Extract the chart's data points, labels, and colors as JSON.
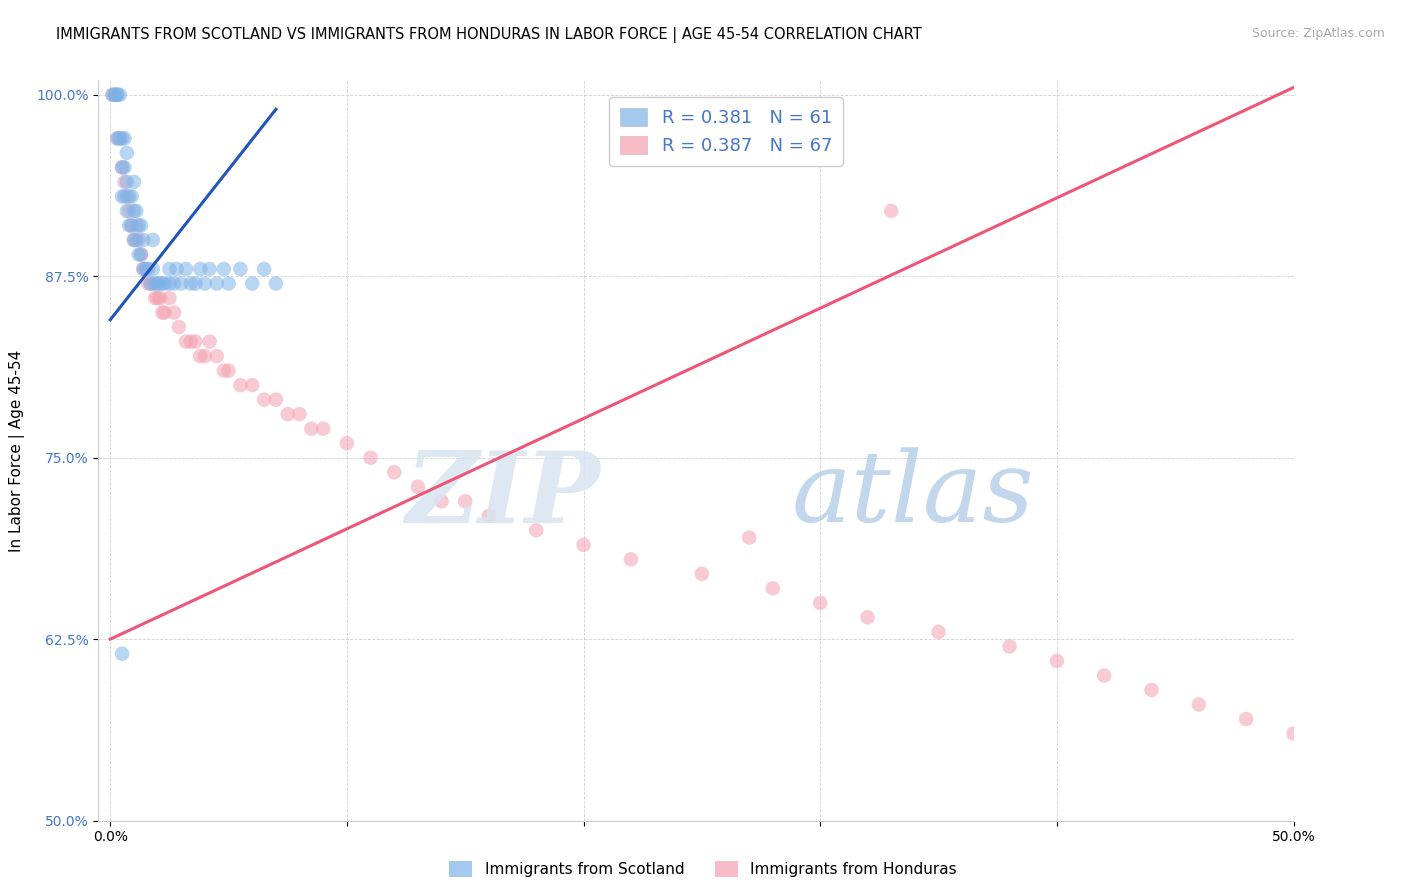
{
  "title": "IMMIGRANTS FROM SCOTLAND VS IMMIGRANTS FROM HONDURAS IN LABOR FORCE | AGE 45-54 CORRELATION CHART",
  "source": "Source: ZipAtlas.com",
  "ylabel": "In Labor Force | Age 45-54",
  "xlabel": "",
  "xlim": [
    -0.005,
    0.5
  ],
  "ylim": [
    0.5,
    1.01
  ],
  "yticks": [
    0.5,
    0.625,
    0.75,
    0.875,
    1.0
  ],
  "ytick_labels": [
    "50.0%",
    "62.5%",
    "75.0%",
    "87.5%",
    "100.0%"
  ],
  "xticks": [
    0.0,
    0.1,
    0.2,
    0.3,
    0.4,
    0.5
  ],
  "xtick_labels": [
    "0.0%",
    "",
    "",
    "",
    "",
    "50.0%"
  ],
  "scotland_R": 0.381,
  "scotland_N": 61,
  "honduras_R": 0.387,
  "honduras_N": 67,
  "scotland_color": "#7EB3E8",
  "honduras_color": "#F4A0B0",
  "scotland_line_color": "#2255BB",
  "honduras_line_color": "#EE5577",
  "axis_label_color": "#4477CC",
  "scotland_x": [
    0.001,
    0.002,
    0.002,
    0.003,
    0.003,
    0.003,
    0.004,
    0.004,
    0.005,
    0.005,
    0.005,
    0.006,
    0.006,
    0.006,
    0.007,
    0.007,
    0.007,
    0.008,
    0.008,
    0.009,
    0.009,
    0.01,
    0.01,
    0.01,
    0.011,
    0.011,
    0.012,
    0.012,
    0.013,
    0.013,
    0.014,
    0.014,
    0.015,
    0.016,
    0.017,
    0.018,
    0.018,
    0.019,
    0.02,
    0.021,
    0.022,
    0.023,
    0.025,
    0.025,
    0.027,
    0.028,
    0.03,
    0.032,
    0.034,
    0.036,
    0.038,
    0.04,
    0.042,
    0.045,
    0.048,
    0.05,
    0.055,
    0.06,
    0.065,
    0.07,
    0.005
  ],
  "scotland_y": [
    1.0,
    1.0,
    1.0,
    1.0,
    1.0,
    0.97,
    1.0,
    0.97,
    0.95,
    0.93,
    0.97,
    0.93,
    0.95,
    0.97,
    0.92,
    0.94,
    0.96,
    0.91,
    0.93,
    0.91,
    0.93,
    0.9,
    0.92,
    0.94,
    0.9,
    0.92,
    0.89,
    0.91,
    0.89,
    0.91,
    0.88,
    0.9,
    0.88,
    0.88,
    0.87,
    0.88,
    0.9,
    0.87,
    0.87,
    0.87,
    0.87,
    0.87,
    0.87,
    0.88,
    0.87,
    0.88,
    0.87,
    0.88,
    0.87,
    0.87,
    0.88,
    0.87,
    0.88,
    0.87,
    0.88,
    0.87,
    0.88,
    0.87,
    0.88,
    0.87,
    0.615
  ],
  "honduras_x": [
    0.001,
    0.002,
    0.003,
    0.004,
    0.005,
    0.006,
    0.007,
    0.008,
    0.009,
    0.01,
    0.011,
    0.012,
    0.013,
    0.014,
    0.015,
    0.016,
    0.017,
    0.018,
    0.019,
    0.02,
    0.021,
    0.022,
    0.023,
    0.025,
    0.027,
    0.029,
    0.032,
    0.034,
    0.036,
    0.038,
    0.04,
    0.042,
    0.045,
    0.048,
    0.05,
    0.055,
    0.06,
    0.065,
    0.07,
    0.075,
    0.08,
    0.085,
    0.09,
    0.1,
    0.11,
    0.12,
    0.13,
    0.14,
    0.15,
    0.16,
    0.18,
    0.2,
    0.22,
    0.25,
    0.28,
    0.3,
    0.32,
    0.35,
    0.38,
    0.4,
    0.42,
    0.44,
    0.46,
    0.48,
    0.5,
    0.27,
    0.33
  ],
  "honduras_y": [
    1.0,
    1.0,
    0.97,
    0.97,
    0.95,
    0.94,
    0.93,
    0.92,
    0.91,
    0.9,
    0.91,
    0.9,
    0.89,
    0.88,
    0.88,
    0.87,
    0.87,
    0.87,
    0.86,
    0.86,
    0.86,
    0.85,
    0.85,
    0.86,
    0.85,
    0.84,
    0.83,
    0.83,
    0.83,
    0.82,
    0.82,
    0.83,
    0.82,
    0.81,
    0.81,
    0.8,
    0.8,
    0.79,
    0.79,
    0.78,
    0.78,
    0.77,
    0.77,
    0.76,
    0.75,
    0.74,
    0.73,
    0.72,
    0.72,
    0.71,
    0.7,
    0.69,
    0.68,
    0.67,
    0.66,
    0.65,
    0.64,
    0.63,
    0.62,
    0.61,
    0.6,
    0.59,
    0.58,
    0.57,
    0.56,
    0.695,
    0.92
  ],
  "scotland_trendline_x": [
    0.0,
    0.07
  ],
  "scotland_trendline_y": [
    0.845,
    0.99
  ],
  "honduras_trendline_x": [
    0.0,
    0.5
  ],
  "honduras_trendline_y": [
    0.625,
    1.005
  ]
}
